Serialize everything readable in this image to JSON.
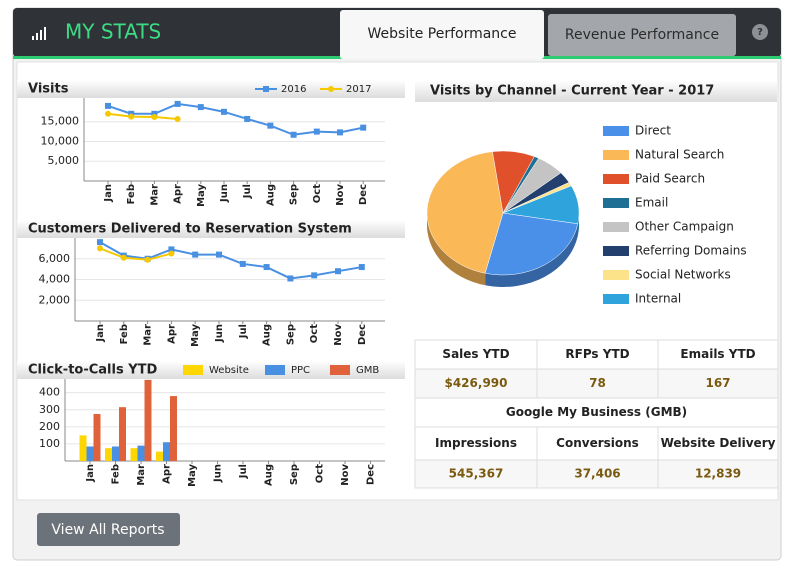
{
  "header": {
    "title": "MY STATS",
    "tabs": [
      "Website Performance",
      "Revenue Performance"
    ],
    "help": "?"
  },
  "chart_data": [
    {
      "type": "line",
      "title": "Visits",
      "categories": [
        "Jan",
        "Feb",
        "Mar",
        "Apr",
        "May",
        "Jun",
        "Jul",
        "Aug",
        "Sep",
        "Oct",
        "Nov",
        "Dec"
      ],
      "series": [
        {
          "name": "2016",
          "color": "#4a90e2",
          "values": [
            19000,
            17000,
            17000,
            19500,
            18700,
            17500,
            15700,
            14000,
            11700,
            12500,
            12300,
            13500
          ]
        },
        {
          "name": "2017",
          "color": "#f5c800",
          "values": [
            17000,
            16300,
            16200,
            15700,
            null,
            null,
            null,
            null,
            null,
            null,
            null,
            null
          ]
        }
      ],
      "ylim": [
        0,
        21000
      ],
      "yticks": [
        {
          "value": 5000,
          "label": "5,000"
        },
        {
          "value": 10000,
          "label": "10,000"
        },
        {
          "value": 15000,
          "label": "15,000"
        }
      ],
      "grid": true
    },
    {
      "type": "line",
      "title": "Customers Delivered to Reservation System",
      "categories": [
        "Jan",
        "Feb",
        "Mar",
        "Apr",
        "May",
        "Jun",
        "Jul",
        "Aug",
        "Sep",
        "Oct",
        "Nov",
        "Dec"
      ],
      "series": [
        {
          "color": "#4a90e2",
          "values": [
            7600,
            6300,
            6000,
            6900,
            6400,
            6400,
            5500,
            5200,
            4100,
            4400,
            4800,
            5200
          ]
        },
        {
          "color": "#f5c800",
          "values": [
            7000,
            6100,
            5900,
            6500,
            null,
            null,
            null,
            null,
            null,
            null,
            null,
            null
          ]
        }
      ],
      "ylim": [
        0,
        8000
      ],
      "yticks": [
        {
          "value": 2000,
          "label": "2,000"
        },
        {
          "value": 4000,
          "label": "4,000"
        },
        {
          "value": 6000,
          "label": "6,000"
        }
      ],
      "grid": true
    },
    {
      "type": "bar",
      "title": "Click-to-Calls YTD",
      "categories": [
        "Jan",
        "Feb",
        "Mar",
        "Apr",
        "May",
        "Jun",
        "Jul",
        "Aug",
        "Sep",
        "Oct",
        "Nov",
        "Dec"
      ],
      "series": [
        {
          "name": "Website",
          "color": "#ffd700",
          "values": [
            150,
            75,
            75,
            55,
            null,
            null,
            null,
            null,
            null,
            null,
            null,
            null
          ]
        },
        {
          "name": "PPC",
          "color": "#4a90e2",
          "values": [
            85,
            85,
            90,
            110,
            null,
            null,
            null,
            null,
            null,
            null,
            null,
            null
          ]
        },
        {
          "name": "GMB",
          "color": "#e0623a",
          "values": [
            275,
            315,
            475,
            380,
            null,
            null,
            null,
            null,
            null,
            null,
            null,
            null
          ]
        }
      ],
      "ylim": [
        0,
        480
      ],
      "yticks": [
        100,
        200,
        300,
        400
      ],
      "grid": true
    },
    {
      "type": "pie",
      "title": "Visits by Channel - Current Year - 2017",
      "categories": [
        "Direct",
        "Natural Search",
        "Paid Search",
        "Email",
        "Other Campaign",
        "Referring Domains",
        "Social Networks",
        "Internal"
      ],
      "values": [
        26,
        44,
        9,
        1,
        6,
        3,
        1,
        10
      ],
      "colors": [
        "#4a8fe8",
        "#fbb856",
        "#e0502a",
        "#1e6f93",
        "#c4c4c4",
        "#223f6e",
        "#fce38a",
        "#2ea3dc"
      ]
    }
  ],
  "stats": {
    "kpis": [
      {
        "label": "Sales YTD",
        "value": "$426,990"
      },
      {
        "label": "RFPs YTD",
        "value": "78"
      },
      {
        "label": "Emails YTD",
        "value": "167"
      }
    ],
    "gmb_title": "Google My Business (GMB)",
    "gmb": [
      {
        "label": "Impressions",
        "value": "545,367"
      },
      {
        "label": "Conversions",
        "value": "37,406"
      },
      {
        "label": "Website Delivery",
        "value": "12,839"
      }
    ]
  },
  "footer": {
    "button": "View All Reports"
  }
}
